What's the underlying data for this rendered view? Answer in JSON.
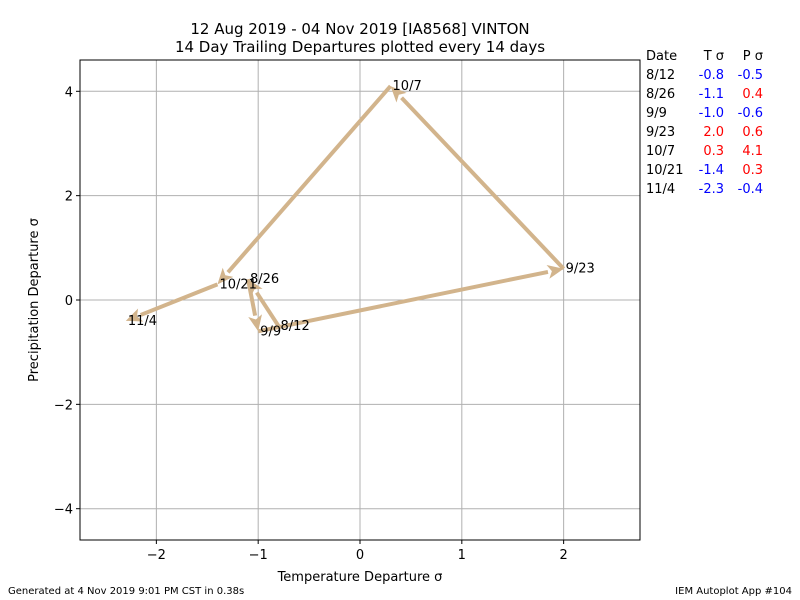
{
  "chart_data": {
    "type": "line",
    "title": "12 Aug 2019 - 04 Nov 2019 [IA8568] VINTON",
    "subtitle": "14 Day Trailing Departures plotted every 14 days",
    "xlabel": "Temperature Departure σ",
    "ylabel": "Precipitation Departure σ",
    "xlim": [
      -2.75,
      2.75
    ],
    "ylim": [
      -4.6,
      4.6
    ],
    "xticks": [
      -2,
      -1,
      0,
      1,
      2
    ],
    "yticks": [
      -4,
      -2,
      0,
      2,
      4
    ],
    "xtick_labels": [
      "−2",
      "−1",
      "0",
      "1",
      "2"
    ],
    "ytick_labels": [
      "−4",
      "−2",
      "0",
      "2",
      "4"
    ],
    "grid": true,
    "arrow_color": "#d2b48c",
    "points": [
      {
        "label": "8/12",
        "x": -0.8,
        "y": -0.5
      },
      {
        "label": "8/26",
        "x": -1.1,
        "y": 0.4
      },
      {
        "label": "9/9",
        "x": -1.0,
        "y": -0.6
      },
      {
        "label": "9/23",
        "x": 2.0,
        "y": 0.6
      },
      {
        "label": "10/7",
        "x": 0.3,
        "y": 4.1
      },
      {
        "label": "10/21",
        "x": -1.4,
        "y": 0.3
      },
      {
        "label": "11/4",
        "x": -2.3,
        "y": -0.4
      }
    ],
    "table": {
      "headers": [
        "Date",
        "T σ",
        "P σ"
      ],
      "rows": [
        {
          "date": "8/12",
          "t": "-0.8",
          "p": "-0.5"
        },
        {
          "date": "8/26",
          "t": "-1.1",
          "p": "0.4"
        },
        {
          "date": "9/9",
          "t": "-1.0",
          "p": "-0.6"
        },
        {
          "date": "9/23",
          "t": "2.0",
          "p": "0.6"
        },
        {
          "date": "10/7",
          "t": "0.3",
          "p": "4.1"
        },
        {
          "date": "10/21",
          "t": "-1.4",
          "p": "0.3"
        },
        {
          "date": "11/4",
          "t": "-2.3",
          "p": "-0.4"
        }
      ],
      "positive_color": "#ff0000",
      "negative_color": "#0000ff"
    }
  },
  "footer": {
    "left": "Generated at 4 Nov 2019 9:01 PM CST in 0.38s",
    "right": "IEM Autoplot App #104"
  }
}
